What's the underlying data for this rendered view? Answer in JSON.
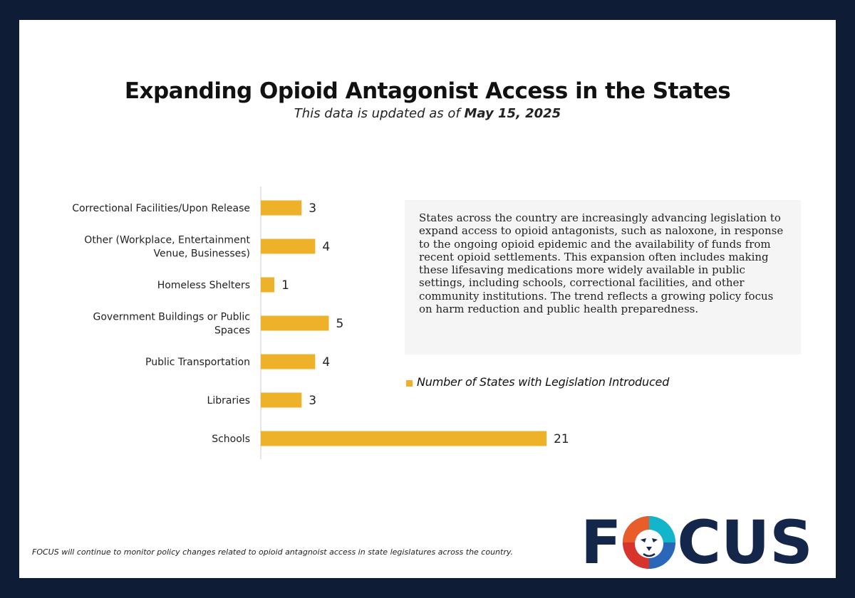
{
  "header": {
    "title": "Expanding Opioid Antagonist Access in the States",
    "subtitle_prefix": "This data is updated as of ",
    "subtitle_date": "May 15, 2025"
  },
  "description": "States across the country are increasingly advancing legislation to expand access to opioid antagonists, such as naloxone, in response to the ongoing opioid epidemic and the availability of funds from recent opioid settlements. This expansion often includes making these lifesaving medications more widely available in public settings, including schools, correctional facilities, and other community institutions. The trend reflects a growing policy focus on harm reduction and public health preparedness.",
  "footer": "FOCUS will continue to monitor policy changes related to opioid antagnoist access in state legislatures across the country.",
  "logo": {
    "letter_f": "F",
    "letters_cus": "CUS",
    "mark_icon": "lion-head-icon"
  },
  "colors": {
    "bar": "#eeb22a",
    "frame": "#0f1c36",
    "logo_text": "#14264a"
  },
  "chart_data": {
    "type": "bar",
    "orientation": "horizontal",
    "categories": [
      [
        "Correctional Facilities/Upon Release"
      ],
      [
        "Other (Workplace, Entertainment",
        "Venue, Businesses)"
      ],
      [
        "Homeless Shelters"
      ],
      [
        "Government Buildings or Public",
        "Spaces"
      ],
      [
        "Public Transportation"
      ],
      [
        "Libraries"
      ],
      [
        "Schools"
      ]
    ],
    "series": [
      {
        "name": "Number of States with Legislation Introduced",
        "values": [
          3,
          4,
          1,
          5,
          4,
          3,
          21
        ]
      }
    ],
    "data_labels": true,
    "grid": false,
    "legend_position": "right"
  }
}
